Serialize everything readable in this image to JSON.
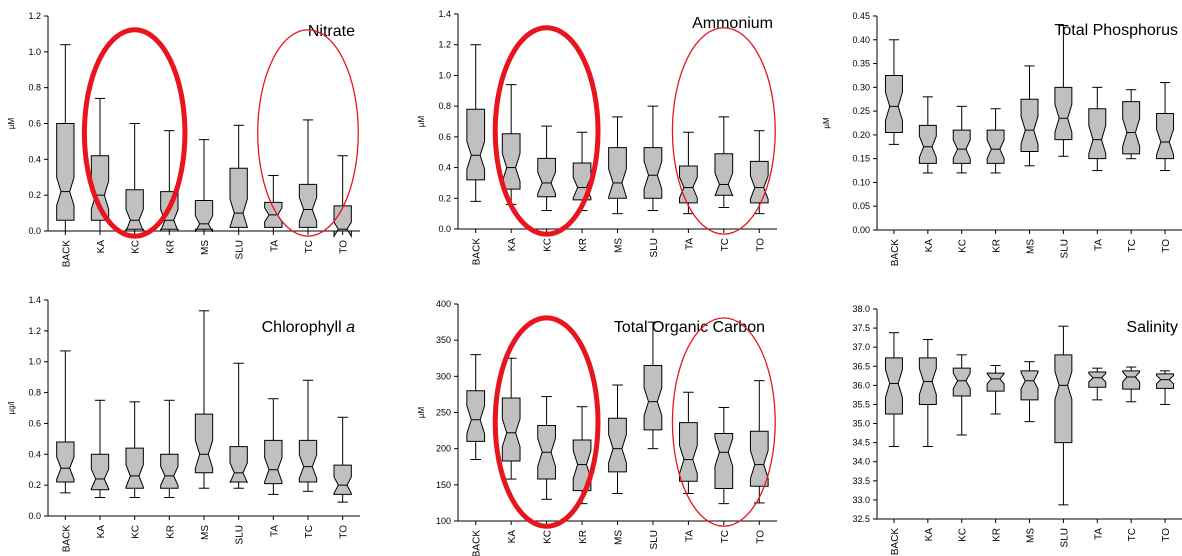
{
  "figure": {
    "box_fill": "#c0c0c0",
    "circle_color": "#e8141e"
  },
  "chart_data": [
    {
      "type": "boxplot",
      "title": "Nitrate",
      "ylabel": "µM",
      "ylim": [
        0,
        1.2
      ],
      "yticks": [
        "0.0",
        "0.2",
        "0.4",
        "0.6",
        "0.8",
        "1.0",
        "1.2"
      ],
      "tick_values": [
        0,
        0.2,
        0.4,
        0.6,
        0.8,
        1.0,
        1.2
      ],
      "categories": [
        "BACK",
        "KA",
        "KC",
        "KR",
        "MS",
        "SLU",
        "TA",
        "TC",
        "TO"
      ],
      "boxes": [
        {
          "min": 0.0,
          "q1": 0.06,
          "median": 0.22,
          "q3": 0.6,
          "max": 1.04
        },
        {
          "min": 0.0,
          "q1": 0.06,
          "median": 0.2,
          "q3": 0.42,
          "max": 0.74
        },
        {
          "min": 0.0,
          "q1": 0.01,
          "median": 0.06,
          "q3": 0.23,
          "max": 0.6
        },
        {
          "min": 0.0,
          "q1": 0.01,
          "median": 0.06,
          "q3": 0.22,
          "max": 0.56
        },
        {
          "min": 0.0,
          "q1": 0.01,
          "median": 0.04,
          "q3": 0.17,
          "max": 0.51
        },
        {
          "min": 0.0,
          "q1": 0.02,
          "median": 0.1,
          "q3": 0.35,
          "max": 0.59
        },
        {
          "min": 0.0,
          "q1": 0.02,
          "median": 0.09,
          "q3": 0.16,
          "max": 0.31
        },
        {
          "min": 0.0,
          "q1": 0.02,
          "median": 0.12,
          "q3": 0.26,
          "max": 0.62
        },
        {
          "min": 0.0,
          "q1": 0.0,
          "median": 0.01,
          "q3": 0.14,
          "max": 0.42
        }
      ],
      "circles": [
        {
          "from": 1,
          "to": 3,
          "weight": "thick"
        },
        {
          "from": 6,
          "to": 8,
          "weight": "thin"
        }
      ]
    },
    {
      "type": "boxplot",
      "title": "Ammonium",
      "ylabel": "µM",
      "ylim": [
        0,
        1.4
      ],
      "yticks": [
        "0.0",
        "0.2",
        "0.4",
        "0.6",
        "0.8",
        "1.0",
        "1.2",
        "1.4"
      ],
      "tick_values": [
        0,
        0.2,
        0.4,
        0.6,
        0.8,
        1.0,
        1.2,
        1.4
      ],
      "categories": [
        "BACK",
        "KA",
        "KC",
        "KR",
        "MS",
        "SLU",
        "TA",
        "TC",
        "TO"
      ],
      "boxes": [
        {
          "min": 0.18,
          "q1": 0.32,
          "median": 0.48,
          "q3": 0.78,
          "max": 1.2
        },
        {
          "min": 0.16,
          "q1": 0.26,
          "median": 0.4,
          "q3": 0.62,
          "max": 0.94
        },
        {
          "min": 0.12,
          "q1": 0.21,
          "median": 0.3,
          "q3": 0.46,
          "max": 0.67
        },
        {
          "min": 0.12,
          "q1": 0.19,
          "median": 0.27,
          "q3": 0.43,
          "max": 0.63
        },
        {
          "min": 0.1,
          "q1": 0.2,
          "median": 0.3,
          "q3": 0.53,
          "max": 0.73
        },
        {
          "min": 0.12,
          "q1": 0.2,
          "median": 0.35,
          "q3": 0.53,
          "max": 0.8
        },
        {
          "min": 0.1,
          "q1": 0.17,
          "median": 0.27,
          "q3": 0.41,
          "max": 0.63
        },
        {
          "min": 0.14,
          "q1": 0.22,
          "median": 0.29,
          "q3": 0.49,
          "max": 0.73
        },
        {
          "min": 0.1,
          "q1": 0.17,
          "median": 0.27,
          "q3": 0.44,
          "max": 0.64
        }
      ],
      "circles": [
        {
          "from": 1,
          "to": 3,
          "weight": "thick"
        },
        {
          "from": 6,
          "to": 8,
          "weight": "thin"
        }
      ]
    },
    {
      "type": "boxplot",
      "title": "Total Phosphorus",
      "ylabel": "µM",
      "ylim": [
        0,
        0.45
      ],
      "yticks": [
        "0.00",
        "0.05",
        "0.10",
        "0.15",
        "0.20",
        "0.25",
        "0.30",
        "0.35",
        "0.40",
        "0.45"
      ],
      "tick_values": [
        0,
        0.05,
        0.1,
        0.15,
        0.2,
        0.25,
        0.3,
        0.35,
        0.4,
        0.45
      ],
      "categories": [
        "BACK",
        "KA",
        "KC",
        "KR",
        "MS",
        "SLU",
        "TA",
        "TC",
        "TO"
      ],
      "boxes": [
        {
          "min": 0.18,
          "q1": 0.205,
          "median": 0.26,
          "q3": 0.325,
          "max": 0.4
        },
        {
          "min": 0.12,
          "q1": 0.14,
          "median": 0.175,
          "q3": 0.22,
          "max": 0.28
        },
        {
          "min": 0.12,
          "q1": 0.14,
          "median": 0.17,
          "q3": 0.21,
          "max": 0.26
        },
        {
          "min": 0.12,
          "q1": 0.14,
          "median": 0.17,
          "q3": 0.21,
          "max": 0.255
        },
        {
          "min": 0.135,
          "q1": 0.165,
          "median": 0.21,
          "q3": 0.275,
          "max": 0.345
        },
        {
          "min": 0.155,
          "q1": 0.19,
          "median": 0.235,
          "q3": 0.3,
          "max": 0.43
        },
        {
          "min": 0.125,
          "q1": 0.15,
          "median": 0.19,
          "q3": 0.255,
          "max": 0.3
        },
        {
          "min": 0.15,
          "q1": 0.16,
          "median": 0.205,
          "q3": 0.27,
          "max": 0.295
        },
        {
          "min": 0.125,
          "q1": 0.15,
          "median": 0.185,
          "q3": 0.245,
          "max": 0.31
        }
      ],
      "circles": []
    },
    {
      "type": "boxplot",
      "title": "Chlorophyll",
      "title_italic": "a",
      "ylabel": "µg/l",
      "ylim": [
        0,
        1.4
      ],
      "yticks": [
        "0.0",
        "0.2",
        "0.4",
        "0.6",
        "0.8",
        "1.0",
        "1.2",
        "1.4"
      ],
      "tick_values": [
        0,
        0.2,
        0.4,
        0.6,
        0.8,
        1.0,
        1.2,
        1.4
      ],
      "categories": [
        "BACK",
        "KA",
        "KC",
        "KR",
        "MS",
        "SLU",
        "TA",
        "TC",
        "TO"
      ],
      "boxes": [
        {
          "min": 0.15,
          "q1": 0.22,
          "median": 0.31,
          "q3": 0.48,
          "max": 1.07
        },
        {
          "min": 0.12,
          "q1": 0.17,
          "median": 0.24,
          "q3": 0.4,
          "max": 0.75
        },
        {
          "min": 0.12,
          "q1": 0.18,
          "median": 0.26,
          "q3": 0.44,
          "max": 0.74
        },
        {
          "min": 0.12,
          "q1": 0.18,
          "median": 0.26,
          "q3": 0.4,
          "max": 0.75
        },
        {
          "min": 0.18,
          "q1": 0.28,
          "median": 0.4,
          "q3": 0.66,
          "max": 1.33
        },
        {
          "min": 0.18,
          "q1": 0.22,
          "median": 0.28,
          "q3": 0.45,
          "max": 0.99
        },
        {
          "min": 0.14,
          "q1": 0.21,
          "median": 0.3,
          "q3": 0.49,
          "max": 0.76
        },
        {
          "min": 0.16,
          "q1": 0.22,
          "median": 0.32,
          "q3": 0.49,
          "max": 0.88
        },
        {
          "min": 0.09,
          "q1": 0.14,
          "median": 0.2,
          "q3": 0.33,
          "max": 0.64
        }
      ],
      "circles": []
    },
    {
      "type": "boxplot",
      "title": "Total Organic Carbon",
      "ylabel": "µM",
      "ylim": [
        100,
        400
      ],
      "yticks": [
        "100",
        "150",
        "200",
        "250",
        "300",
        "350",
        "400"
      ],
      "tick_values": [
        100,
        150,
        200,
        250,
        300,
        350,
        400
      ],
      "categories": [
        "BACK",
        "KA",
        "KC",
        "KR",
        "MS",
        "SLU",
        "TA",
        "TC",
        "TO"
      ],
      "boxes": [
        {
          "min": 185,
          "q1": 210,
          "median": 240,
          "q3": 280,
          "max": 330
        },
        {
          "min": 158,
          "q1": 183,
          "median": 222,
          "q3": 270,
          "max": 325
        },
        {
          "min": 130,
          "q1": 158,
          "median": 195,
          "q3": 232,
          "max": 272
        },
        {
          "min": 124,
          "q1": 142,
          "median": 178,
          "q3": 212,
          "max": 258
        },
        {
          "min": 138,
          "q1": 168,
          "median": 200,
          "q3": 242,
          "max": 288
        },
        {
          "min": 200,
          "q1": 226,
          "median": 265,
          "q3": 315,
          "max": 375
        },
        {
          "min": 138,
          "q1": 155,
          "median": 185,
          "q3": 236,
          "max": 278
        },
        {
          "min": 124,
          "q1": 145,
          "median": 195,
          "q3": 221,
          "max": 257
        },
        {
          "min": 125,
          "q1": 148,
          "median": 178,
          "q3": 224,
          "max": 294
        }
      ],
      "circles": [
        {
          "from": 1,
          "to": 3,
          "weight": "thick"
        },
        {
          "from": 6,
          "to": 8,
          "weight": "thin"
        }
      ]
    },
    {
      "type": "boxplot",
      "title": "Salinity",
      "ylabel": "",
      "ylim": [
        32.5,
        38.0
      ],
      "yticks": [
        "32.5",
        "33.0",
        "33.5",
        "34.0",
        "34.5",
        "35.0",
        "35.5",
        "36.0",
        "36.5",
        "37.0",
        "37.5",
        "38.0"
      ],
      "tick_values": [
        32.5,
        33.0,
        33.5,
        34.0,
        34.5,
        35.0,
        35.5,
        36.0,
        36.5,
        37.0,
        37.5,
        38.0
      ],
      "categories": [
        "BACK",
        "KA",
        "KC",
        "KR",
        "MS",
        "SLU",
        "TA",
        "TC",
        "TO"
      ],
      "boxes": [
        {
          "min": 34.4,
          "q1": 35.25,
          "median": 36.05,
          "q3": 36.72,
          "max": 37.38
        },
        {
          "min": 34.4,
          "q1": 35.5,
          "median": 36.1,
          "q3": 36.72,
          "max": 37.2
        },
        {
          "min": 34.7,
          "q1": 35.72,
          "median": 36.12,
          "q3": 36.45,
          "max": 36.8
        },
        {
          "min": 35.25,
          "q1": 35.85,
          "median": 36.17,
          "q3": 36.32,
          "max": 36.52
        },
        {
          "min": 35.05,
          "q1": 35.62,
          "median": 36.12,
          "q3": 36.38,
          "max": 36.62
        },
        {
          "min": 32.87,
          "q1": 34.5,
          "median": 36.0,
          "q3": 36.8,
          "max": 37.55
        },
        {
          "min": 35.62,
          "q1": 35.95,
          "median": 36.2,
          "q3": 36.35,
          "max": 36.45
        },
        {
          "min": 35.57,
          "q1": 35.9,
          "median": 36.22,
          "q3": 36.38,
          "max": 36.48
        },
        {
          "min": 35.5,
          "q1": 35.92,
          "median": 36.15,
          "q3": 36.3,
          "max": 36.38
        }
      ],
      "circles": []
    }
  ]
}
